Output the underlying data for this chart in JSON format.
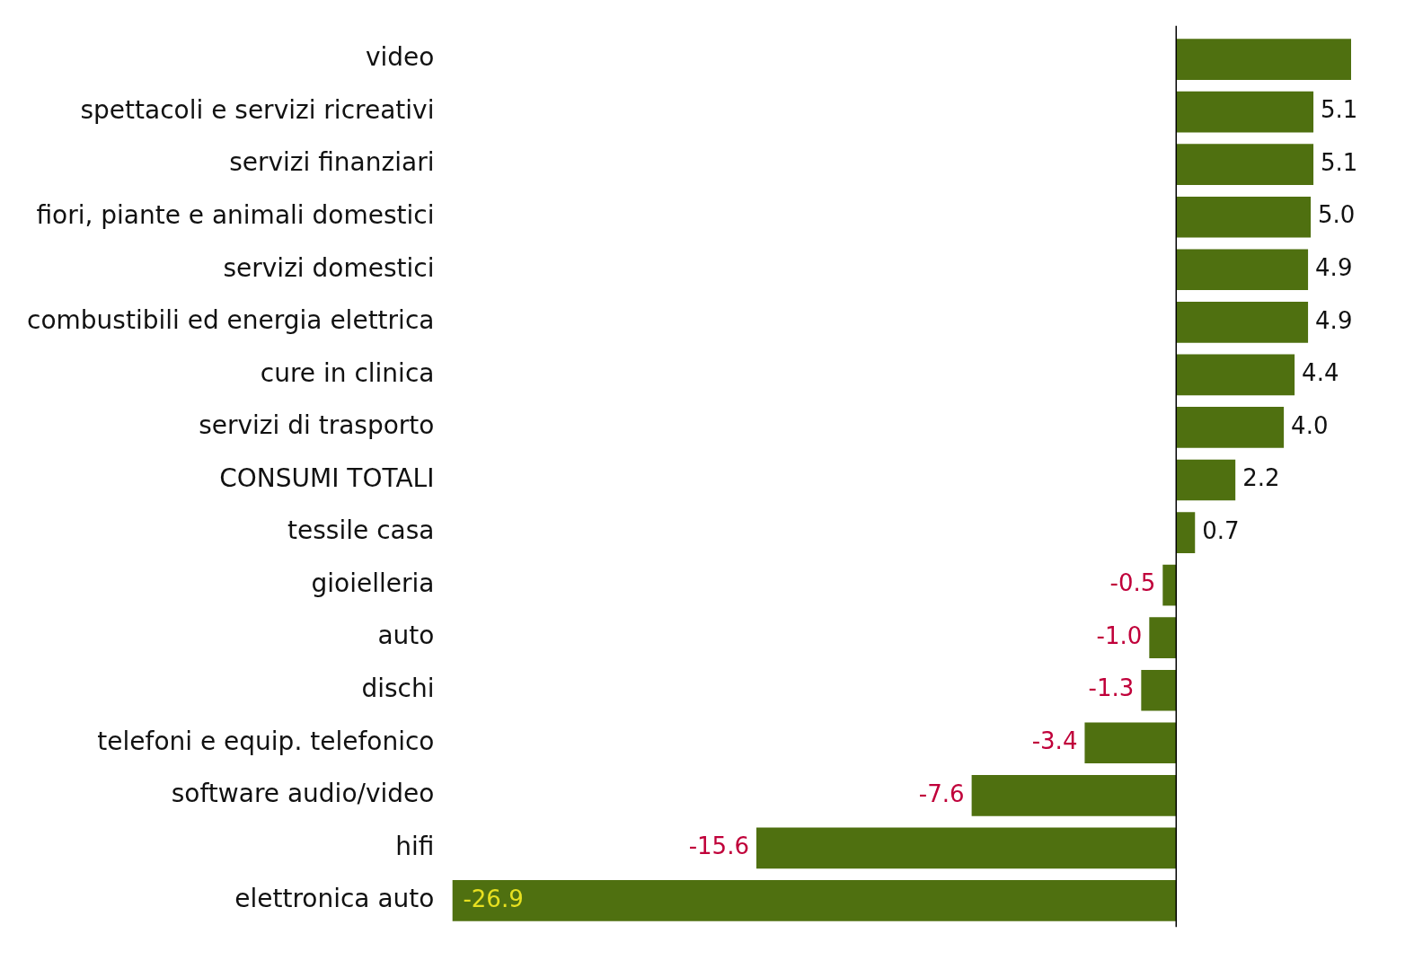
{
  "chart_data": {
    "type": "bar",
    "orientation": "horizontal",
    "categories": [
      "video",
      "spettacoli e servizi ricreativi",
      "servizi finanziari",
      "fiori, piante e animali domestici",
      "servizi domestici",
      "combustibili ed energia elettrica",
      "cure in clinica",
      "servizi di trasporto",
      "CONSUMI TOTALI",
      "tessile casa",
      "gioielleria",
      "auto",
      "dischi",
      "telefoni e equip. telefonico",
      "software audio/video",
      "hifi",
      "elettronica auto"
    ],
    "values": [
      6.5,
      5.1,
      5.1,
      5.0,
      4.9,
      4.9,
      4.4,
      4.0,
      2.2,
      0.7,
      -0.5,
      -1.0,
      -1.3,
      -3.4,
      -7.6,
      -15.6,
      -26.9
    ],
    "value_labels": [
      null,
      "5.1",
      "5.1",
      "5.0",
      "4.9",
      "4.9",
      "4.4",
      "4.0",
      "2.2",
      "0.7",
      "-0.5",
      "-1.0",
      "-1.3",
      "-3.4",
      "-7.6",
      "-15.6",
      "-26.9"
    ],
    "color": "#4f7010"
  }
}
